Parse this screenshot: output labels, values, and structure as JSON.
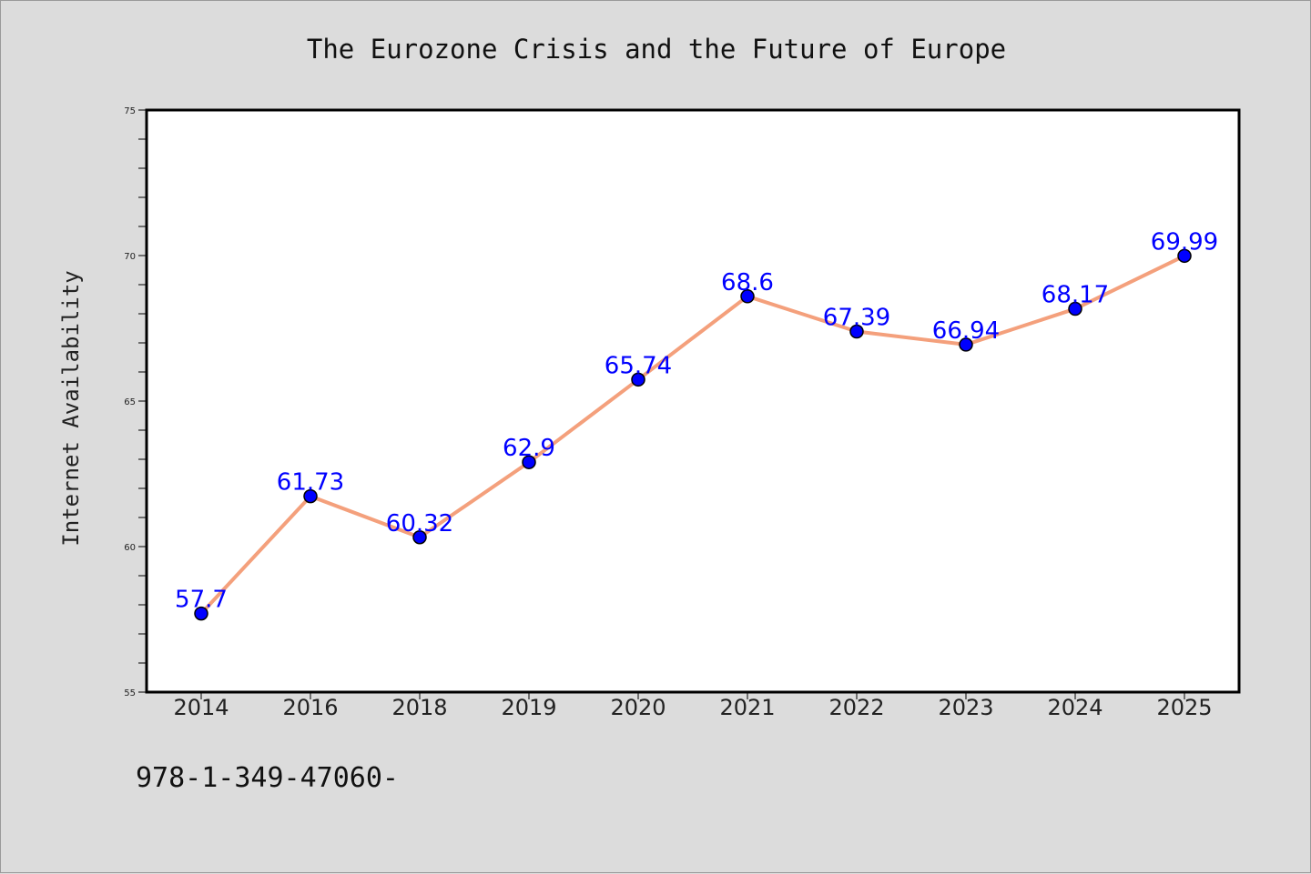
{
  "chart_data": {
    "type": "line",
    "title": "The Eurozone Crisis and the Future of Europe",
    "xlabel": "",
    "ylabel": "Internet Availability",
    "categories": [
      "2014",
      "2016",
      "2018",
      "2019",
      "2020",
      "2021",
      "2022",
      "2023",
      "2024",
      "2025"
    ],
    "series": [
      {
        "values": [
          57.7,
          61.73,
          60.32,
          62.9,
          65.74,
          68.6,
          67.39,
          66.94,
          68.17,
          69.99
        ],
        "data_labels": [
          "57.7",
          "61.73",
          "60.32",
          "62.9",
          "65.74",
          "68.6",
          "67.39",
          "66.94",
          "68.17",
          "69.99"
        ],
        "line_color": "#f4a07c",
        "marker_color": "#0000ff"
      }
    ],
    "ylim": [
      55,
      75
    ],
    "yticks": [
      "55",
      "60",
      "65",
      "70",
      "75"
    ],
    "grid": false,
    "legend": "none"
  },
  "footer": {
    "isbn": "978-1-349-47060-"
  }
}
